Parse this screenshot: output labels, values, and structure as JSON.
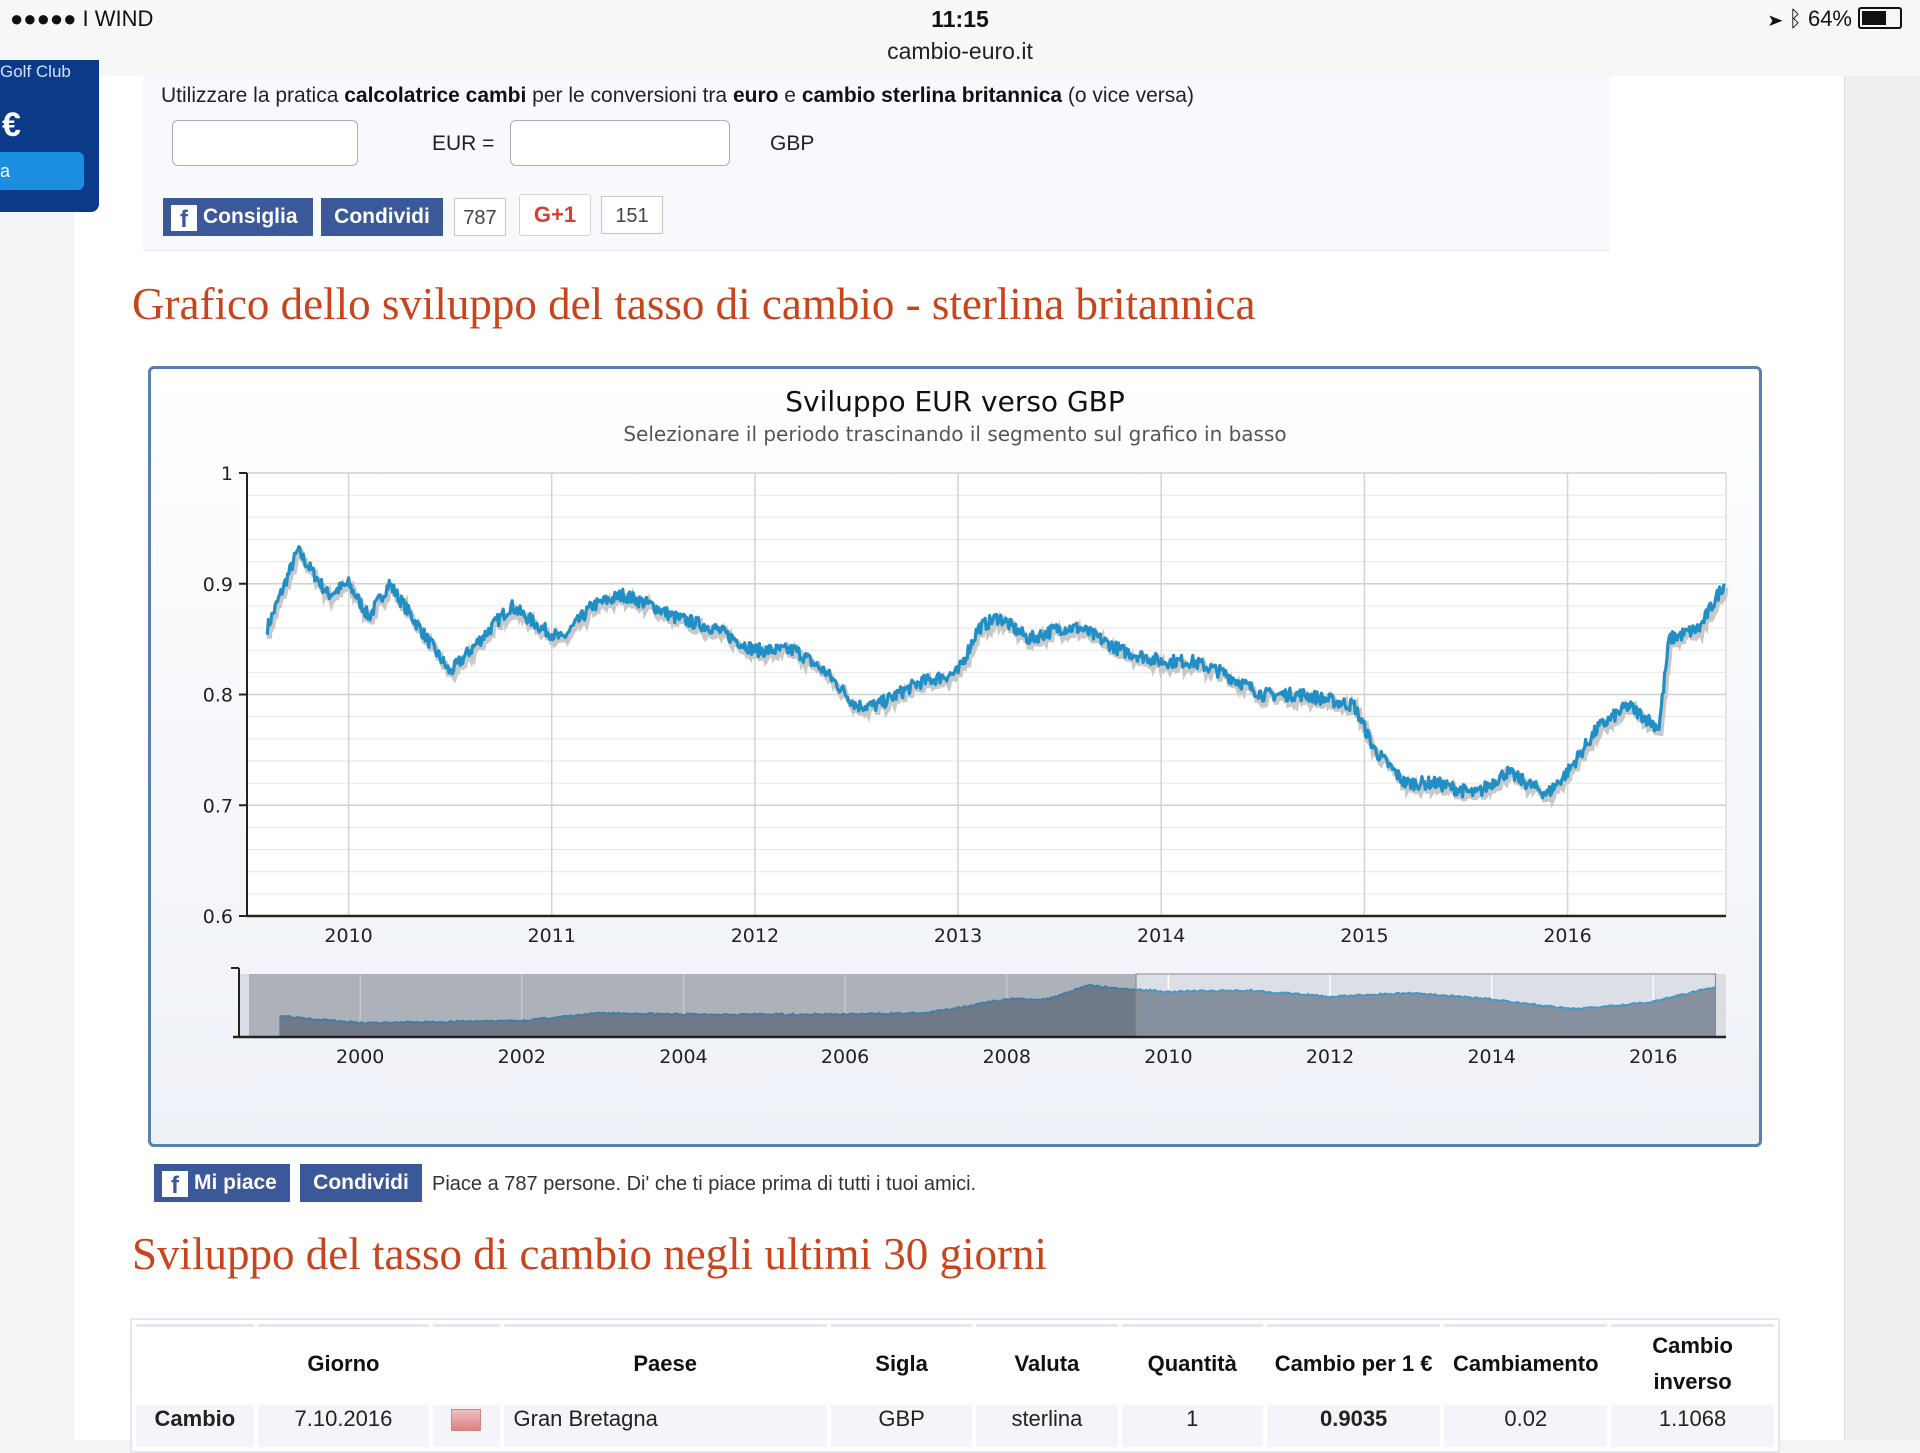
{
  "statusbar": {
    "carrier": "●●●●● I WIND",
    "time": "11:15",
    "url": "cambio-euro.it",
    "battery": "64%"
  },
  "left_ad": {
    "title": "Golf Club",
    "currency": "€",
    "button": "a"
  },
  "calculator": {
    "text_parts": [
      "Utilizzare la pratica ",
      "calcolatrice cambi",
      " per le conversioni tra ",
      "euro",
      " e ",
      "cambio sterlina britannica",
      " (o vice versa)"
    ],
    "from_value": "",
    "from_label": "EUR =",
    "to_value": "",
    "to_label": "GBP"
  },
  "social_top": {
    "like_label": "Consiglia",
    "share_label": "Condividi",
    "like_count": "787",
    "gplus_label": "G+1",
    "gplus_count": "151"
  },
  "section1_title": "Grafico dello sviluppo del tasso di cambio - sterlina britannica",
  "chart_data": {
    "type": "line",
    "title": "Sviluppo EUR verso GBP",
    "subtitle": "Selezionare il periodo trascinando il segmento sul grafico in basso",
    "ylim": [
      0.6,
      1.0
    ],
    "yticks": [
      "1",
      "0.9",
      "0.8",
      "0.7",
      "0.6"
    ],
    "xticks": [
      "2010",
      "2011",
      "2012",
      "2013",
      "2014",
      "2015",
      "2016"
    ],
    "grid": true,
    "series": [
      {
        "x": [
          2009.6,
          2009.75,
          2009.9,
          2010.0,
          2010.1,
          2010.2,
          2010.35,
          2010.5,
          2010.6,
          2010.8,
          2010.95,
          2011.05,
          2011.2,
          2011.35,
          2011.5,
          2011.6,
          2011.8,
          2012.0,
          2012.2,
          2012.35,
          2012.5,
          2012.6,
          2012.8,
          2013.0,
          2013.1,
          2013.2,
          2013.35,
          2013.5,
          2013.6,
          2013.8,
          2014.0,
          2014.15,
          2014.3,
          2014.5,
          2014.7,
          2014.95,
          2015.05,
          2015.2,
          2015.35,
          2015.55,
          2015.7,
          2015.9,
          2016.0,
          2016.15,
          2016.3,
          2016.45,
          2016.5,
          2016.65,
          2016.77
        ],
        "values": [
          0.86,
          0.93,
          0.89,
          0.9,
          0.87,
          0.9,
          0.86,
          0.82,
          0.84,
          0.88,
          0.86,
          0.85,
          0.88,
          0.89,
          0.88,
          0.87,
          0.86,
          0.84,
          0.84,
          0.82,
          0.79,
          0.79,
          0.81,
          0.82,
          0.86,
          0.87,
          0.85,
          0.86,
          0.86,
          0.84,
          0.83,
          0.83,
          0.82,
          0.8,
          0.8,
          0.79,
          0.75,
          0.72,
          0.72,
          0.71,
          0.73,
          0.71,
          0.73,
          0.77,
          0.79,
          0.77,
          0.85,
          0.86,
          0.9
        ]
      }
    ],
    "navigator": {
      "xticks": [
        "2000",
        "2002",
        "2004",
        "2006",
        "2008",
        "2010",
        "2012",
        "2014",
        "2016"
      ],
      "x": [
        1999,
        2000,
        2001,
        2002,
        2003,
        2004,
        2005,
        2006,
        2007,
        2008,
        2008.5,
        2009,
        2009.5,
        2010,
        2011,
        2012,
        2013,
        2014,
        2015,
        2016,
        2016.77
      ],
      "values": [
        0.67,
        0.61,
        0.62,
        0.63,
        0.69,
        0.68,
        0.68,
        0.68,
        0.69,
        0.8,
        0.8,
        0.91,
        0.88,
        0.86,
        0.87,
        0.82,
        0.85,
        0.8,
        0.72,
        0.78,
        0.9
      ],
      "ylim": [
        0.5,
        1.0
      ],
      "selection": [
        2009.6,
        2016.77
      ]
    }
  },
  "social_bottom": {
    "like_label": "Mi piace",
    "share_label": "Condividi",
    "text": "Piace a 787 persone. Di' che ti piace prima di tutti i tuoi amici."
  },
  "section2_title": "Sviluppo del tasso di cambio negli ultimi 30 giorni",
  "table": {
    "headers": [
      "",
      "Giorno",
      "",
      "Paese",
      "Sigla",
      "Valuta",
      "Quantità",
      "Cambio per 1 €",
      "Cambiamento",
      "Cambio inverso"
    ],
    "rows": [
      [
        "Cambio",
        "7.10.2016",
        "",
        "Gran Bretagna",
        "GBP",
        "sterlina",
        "1",
        "0.9035",
        "0.02",
        "1.1068"
      ]
    ]
  }
}
